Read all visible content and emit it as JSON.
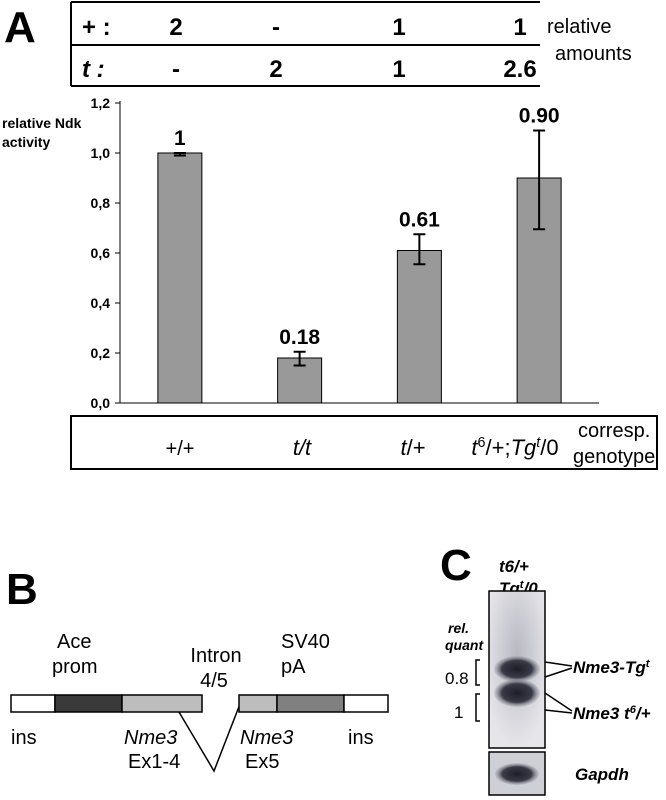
{
  "panel_a": {
    "letter": "A",
    "ratio_table": {
      "rows": [
        {
          "label": "+ :",
          "values": [
            "2",
            "-",
            "1",
            "1"
          ]
        },
        {
          "label": "t :",
          "values": [
            "-",
            "2",
            "1",
            "2.6"
          ]
        }
      ],
      "side_label": [
        "relative",
        "amounts"
      ]
    },
    "genotype_side_label": [
      "corresp.",
      "genotype"
    ]
  },
  "chart_data": {
    "type": "bar",
    "ylabel": [
      "relative Ndk",
      "activity"
    ],
    "ylim": [
      0,
      1.2
    ],
    "yticks": [
      "0,0",
      "0,2",
      "0,4",
      "0,6",
      "0,8",
      "1,0",
      "1,2"
    ],
    "categories": [
      "+/+",
      "t/t",
      "t/+",
      "t6/+;Tgt/0"
    ],
    "values": [
      1.0,
      0.18,
      0.61,
      0.9
    ],
    "error_low": [
      0.99,
      0.15,
      0.555,
      0.695
    ],
    "error_high": [
      1.0,
      0.205,
      0.675,
      1.09
    ],
    "value_labels": [
      "1",
      "0.18",
      "0.61",
      "0.90"
    ],
    "bar_color": "#999999",
    "grid": false
  },
  "panel_b": {
    "letter": "B",
    "labels": {
      "ace_prom": [
        "Ace",
        "prom"
      ],
      "intron": [
        "Intron",
        "4/5"
      ],
      "sv40": [
        "SV40",
        "pA"
      ],
      "ins_left": "ins",
      "ins_right": "ins",
      "nme3_left": [
        "Nme3",
        "Ex1-4"
      ],
      "nme3_right": [
        "Nme3",
        "Ex5"
      ]
    },
    "colors": {
      "ins": "#ffffff",
      "ace": "#3a3a3a",
      "exon": "#bdbdbd",
      "sv40": "#808080"
    }
  },
  "panel_c": {
    "letter": "C",
    "genotype_label": [
      "t6/+",
      "Tgt/0"
    ],
    "rel_quant_label": [
      "rel.",
      "quant"
    ],
    "quant_values": [
      "0.8",
      "1"
    ],
    "band_labels": [
      "Nme3-Tgt",
      "Nme3 t6/+"
    ],
    "loading_label": "Gapdh"
  }
}
